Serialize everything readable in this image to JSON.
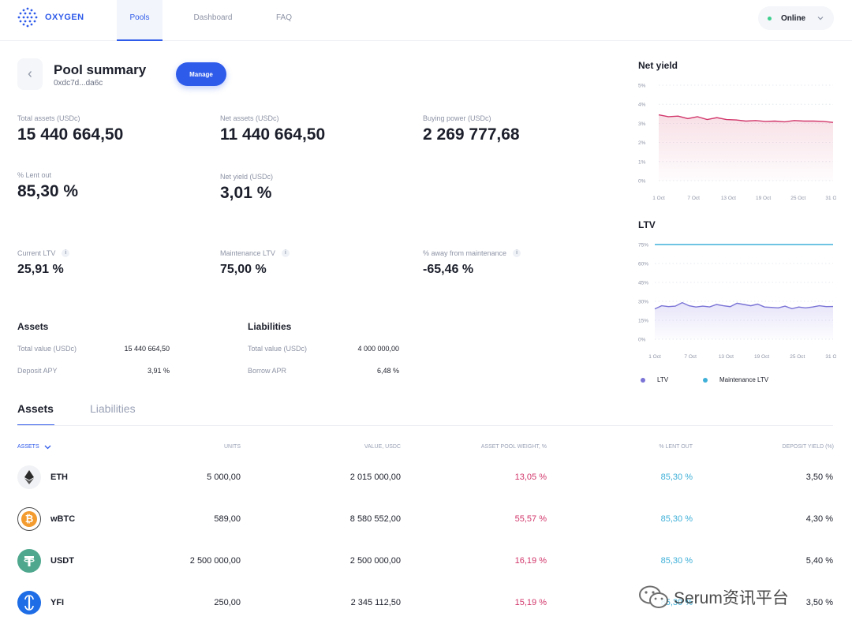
{
  "header": {
    "brand": "OXYGEN",
    "tabs": [
      {
        "label": "Pools"
      },
      {
        "label": "Dashboard"
      },
      {
        "label": "FAQ"
      }
    ],
    "status": "Online"
  },
  "pool": {
    "title": "Pool summary",
    "address": "0xdc7d...da6c",
    "manage_label": "Manage"
  },
  "stats": {
    "total_assets": {
      "label": "Total assets (USDc)",
      "value": "15 440 664,50"
    },
    "net_assets": {
      "label": "Net assets (USDc)",
      "value": "11 440 664,50"
    },
    "buying_power": {
      "label": "Buying power (USDc)",
      "value": "2 269 777,68"
    },
    "lent_out": {
      "label": "% Lent out",
      "value": "85,30 %"
    },
    "net_yield": {
      "label": "Net yield (USDc)",
      "value": "3,01 %"
    },
    "current_ltv": {
      "label": "Current LTV",
      "value": "25,91 %"
    },
    "maintenance_ltv": {
      "label": "Maintenance LTV",
      "value": "75,00 %"
    },
    "away_maintenance": {
      "label": "% away from maintenance",
      "value": "-65,46 %"
    }
  },
  "assets_summary": {
    "title": "Assets",
    "total_label": "Total value (USDc)",
    "total_value": "15 440 664,50",
    "apy_label": "Deposit APY",
    "apy_value": "3,91 %"
  },
  "liabilities_summary": {
    "title": "Liabilities",
    "total_label": "Total value (USDc)",
    "total_value": "4 000 000,00",
    "apr_label": "Borrow APR",
    "apr_value": "6,48 %"
  },
  "colors": {
    "accent": "#2f5bea",
    "pink": "#d2386c",
    "cyan": "#3fb0d8",
    "ltv": "#7b74d6"
  },
  "chart_data": [
    {
      "type": "area",
      "title": "Net yield",
      "x_ticks": [
        "1 Oct",
        "7 Oct",
        "13 Oct",
        "19 Oct",
        "25 Oct",
        "31 Oct"
      ],
      "y_ticks": [
        "0%",
        "1%",
        "2%",
        "3%",
        "4%",
        "5%"
      ],
      "ylim": [
        0,
        5
      ],
      "series": [
        {
          "values": [
            3.45,
            3.35,
            3.38,
            3.25,
            3.35,
            3.2,
            3.3,
            3.2,
            3.18,
            3.12,
            3.15,
            3.1,
            3.12,
            3.08,
            3.15,
            3.12,
            3.12,
            3.1,
            3.05
          ]
        }
      ]
    },
    {
      "type": "area",
      "title": "LTV",
      "x_ticks": [
        "1 Oct",
        "7 Oct",
        "13 Oct",
        "19 Oct",
        "25 Oct",
        "31 Oct"
      ],
      "y_ticks": [
        "0%",
        "15%",
        "30%",
        "45%",
        "60%",
        "75%"
      ],
      "ylim": [
        0,
        75
      ],
      "series": [
        {
          "name": "LTV",
          "values": [
            24,
            26.5,
            25.8,
            26.2,
            29,
            26.5,
            25.5,
            26.2,
            25.6,
            27.5,
            26.5,
            25.8,
            28.5,
            27.5,
            26.5,
            27.8,
            25.5,
            25.2,
            24.8,
            26.2,
            24.2,
            25.5,
            24.8,
            25.5,
            26.5,
            25.8,
            25.9
          ]
        },
        {
          "name": "Maintenance LTV",
          "values": [
            75,
            75
          ]
        }
      ],
      "legend": [
        "LTV",
        "Maintenance LTV"
      ],
      "legend_position": "bottom"
    }
  ],
  "tabs": [
    {
      "label": "Assets"
    },
    {
      "label": "Liabilities"
    }
  ],
  "table": {
    "columns": [
      "ASSETS",
      "UNITS",
      "VALUE, USDC",
      "ASSET POOL WEIGHT, %",
      "% LENT OUT",
      "DEPOSIT YIELD (%)"
    ],
    "rows": [
      {
        "icon": "ethereum-icon",
        "name": "ETH",
        "units": "5 000,00",
        "value": "2 015 000,00",
        "weight": "13,05 %",
        "lent": "85,30 %",
        "yield": "3,50 %"
      },
      {
        "icon": "bitcoin-icon",
        "name": "wBTC",
        "units": "589,00",
        "value": "8 580 552,00",
        "weight": "55,57 %",
        "lent": "85,30 %",
        "yield": "4,30 %"
      },
      {
        "icon": "tether-icon",
        "name": "USDT",
        "units": "2 500 000,00",
        "value": "2 500 000,00",
        "weight": "16,19 %",
        "lent": "85,30 %",
        "yield": "5,40 %"
      },
      {
        "icon": "yearn-icon",
        "name": "YFI",
        "units": "250,00",
        "value": "2 345 112,50",
        "weight": "15,19 %",
        "lent": "85,30 %",
        "yield": "3,50 %"
      }
    ]
  },
  "watermark": {
    "text": "Serum资讯平台"
  }
}
